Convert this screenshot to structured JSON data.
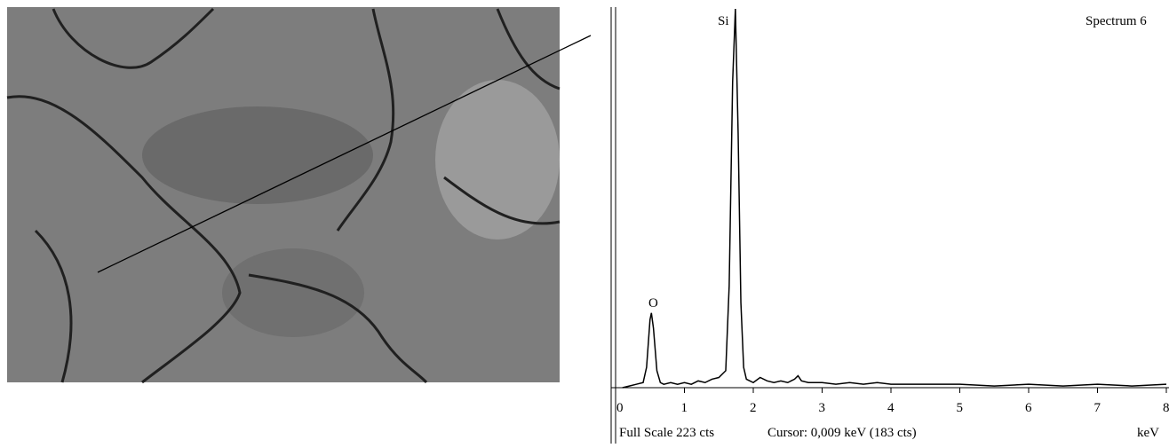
{
  "chart_data": {
    "type": "line",
    "title": "Spectrum 6",
    "x_label": "keV",
    "full_scale": "Full Scale 223 cts",
    "cursor": "Cursor: 0,009 keV (183 cts)",
    "peak_labels": [
      "Si",
      "O"
    ],
    "color": "#000000",
    "xlim": [
      0,
      8
    ],
    "xticks": [
      0,
      1,
      2,
      3,
      4,
      5,
      6,
      7,
      8
    ],
    "ylim": [
      0,
      223
    ],
    "x": [
      0.1,
      0.2,
      0.3,
      0.4,
      0.45,
      0.5,
      0.52,
      0.55,
      0.6,
      0.65,
      0.7,
      0.8,
      0.9,
      1.0,
      1.1,
      1.2,
      1.3,
      1.4,
      1.5,
      1.6,
      1.65,
      1.7,
      1.74,
      1.78,
      1.82,
      1.86,
      1.9,
      2.0,
      2.1,
      2.2,
      2.3,
      2.4,
      2.5,
      2.6,
      2.65,
      2.7,
      2.8,
      3.0,
      3.2,
      3.4,
      3.6,
      3.8,
      4.0,
      4.5,
      5.0,
      5.5,
      6.0,
      6.5,
      7.0,
      7.5,
      8.0
    ],
    "values": [
      0,
      1,
      2,
      3,
      12,
      40,
      44,
      35,
      10,
      3,
      2,
      3,
      2,
      3,
      2,
      4,
      3,
      5,
      6,
      10,
      60,
      180,
      223,
      150,
      50,
      12,
      5,
      3,
      6,
      4,
      3,
      4,
      3,
      5,
      7,
      4,
      3,
      3,
      2,
      3,
      2,
      3,
      2,
      2,
      2,
      1,
      2,
      1,
      2,
      1,
      2
    ]
  }
}
